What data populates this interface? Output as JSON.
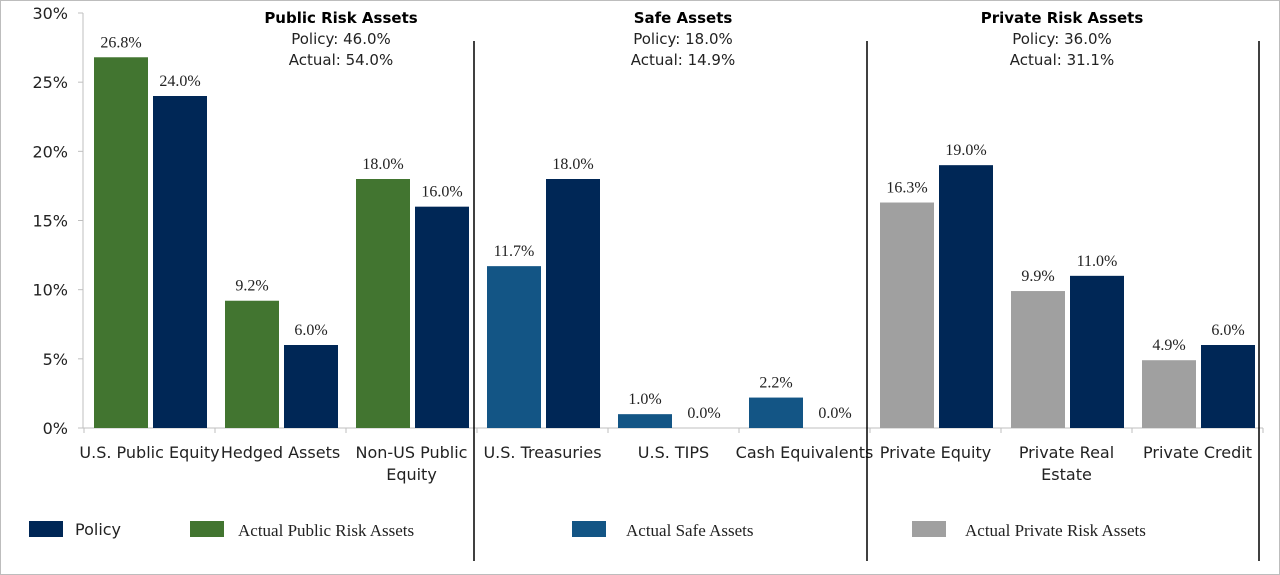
{
  "chart_data": {
    "type": "bar",
    "ylim": [
      0,
      30
    ],
    "yticks": [
      "0%",
      "5%",
      "10%",
      "15%",
      "20%",
      "25%",
      "30%"
    ],
    "categories": [
      "U.S. Public Equity",
      "Hedged Assets",
      "Non-US Public Equity",
      "U.S. Treasuries",
      "U.S. TIPS",
      "Cash Equivalents",
      "Private Equity",
      "Private Real Estate",
      "Private Credit"
    ],
    "category_lines": [
      [
        "U.S. Public Equity"
      ],
      [
        "Hedged Assets"
      ],
      [
        "Non-US Public",
        "Equity"
      ],
      [
        "U.S. Treasuries"
      ],
      [
        "U.S. TIPS"
      ],
      [
        "Cash Equivalents"
      ],
      [
        "Private Equity"
      ],
      [
        "Private Real",
        "Estate"
      ],
      [
        "Private Credit"
      ]
    ],
    "groups": [
      {
        "title": "Public Risk Assets",
        "policy": "Policy:  46.0%",
        "actual": "Actual:  54.0%",
        "categories": [
          0,
          1,
          2
        ],
        "actual_color": "#427530",
        "legend": "Actual Public Risk Assets"
      },
      {
        "title": "Safe Assets",
        "policy": "Policy:  18.0%",
        "actual": "Actual:  14.9%",
        "categories": [
          3,
          4,
          5
        ],
        "actual_color": "#135585",
        "legend": "Actual Safe Assets"
      },
      {
        "title": "Private Risk Assets",
        "policy": "Policy:  36.0%",
        "actual": "Actual:  31.1%",
        "categories": [
          6,
          7,
          8
        ],
        "actual_color": "#a0a0a0",
        "legend": "Actual Private Risk Assets"
      }
    ],
    "series": [
      {
        "name": "Actual",
        "values": [
          26.8,
          9.2,
          18.0,
          11.7,
          1.0,
          2.2,
          16.3,
          9.9,
          4.9
        ],
        "labels": [
          "26.8%",
          "9.2%",
          "18.0%",
          "11.7%",
          "1.0%",
          "2.2%",
          "16.3%",
          "9.9%",
          "4.9%"
        ]
      },
      {
        "name": "Policy",
        "values": [
          24.0,
          6.0,
          16.0,
          18.0,
          0.0,
          0.0,
          19.0,
          11.0,
          6.0
        ],
        "labels": [
          "24.0%",
          "6.0%",
          "16.0%",
          "18.0%",
          "0.0%",
          "0.0%",
          "19.0%",
          "11.0%",
          "6.0%"
        ],
        "color": "#002756"
      }
    ],
    "legend": {
      "policy": "Policy",
      "placement": "bottom"
    },
    "grid": false
  }
}
